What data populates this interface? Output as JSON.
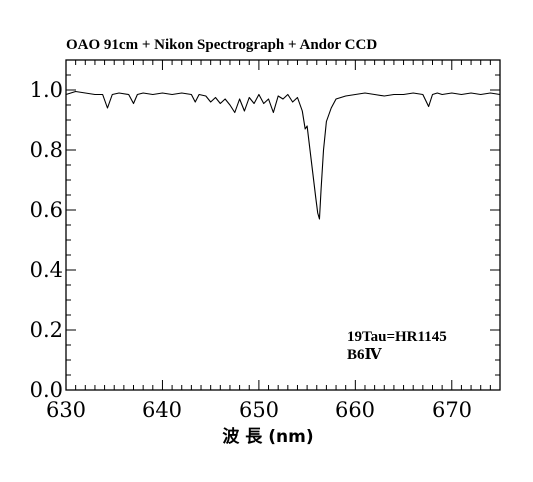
{
  "chart_data": {
    "type": "line",
    "title": "OAO 91cm + Nikon Spectrograph + Andor CCD",
    "xlabel": "波 長 (nm)",
    "ylabel": "",
    "xlim": [
      630,
      675
    ],
    "ylim": [
      0.0,
      1.1
    ],
    "xticks": [
      630,
      640,
      650,
      660,
      670
    ],
    "yticks": [
      0.0,
      0.2,
      0.4,
      0.6,
      0.8,
      1.0
    ],
    "xtick_labels": [
      "630",
      "640",
      "650",
      "660",
      "670"
    ],
    "ytick_labels": [
      "0.0",
      "0.2",
      "0.4",
      "0.6",
      "0.8",
      "1.0"
    ],
    "grid": false,
    "annotations": [
      "19Tau=HR1145",
      "B6Ⅳ"
    ],
    "series": [
      {
        "x": [
          630.0,
          631.0,
          632.0,
          633.0,
          633.8,
          634.3,
          634.8,
          635.5,
          636.5,
          637.0,
          637.4,
          638.0,
          639.0,
          640.0,
          641.0,
          642.0,
          643.0,
          643.4,
          643.8,
          644.5,
          645.0,
          645.5,
          646.0,
          646.5,
          647.0,
          647.5,
          648.0,
          648.5,
          649.0,
          649.5,
          650.0,
          650.5,
          651.0,
          651.5,
          652.0,
          652.5,
          653.0,
          653.5,
          654.0,
          654.5,
          654.8,
          655.0,
          655.3,
          655.6,
          655.9,
          656.1,
          656.28,
          656.45,
          656.7,
          657.0,
          657.5,
          658.0,
          659.0,
          660.0,
          661.0,
          662.0,
          663.0,
          664.0,
          665.0,
          666.0,
          667.0,
          667.6,
          668.0,
          668.5,
          669.0,
          670.0,
          671.0,
          672.0,
          673.0,
          674.0,
          675.0
        ],
        "y": [
          0.985,
          0.995,
          0.99,
          0.985,
          0.985,
          0.94,
          0.985,
          0.99,
          0.985,
          0.955,
          0.985,
          0.99,
          0.985,
          0.99,
          0.985,
          0.99,
          0.985,
          0.96,
          0.985,
          0.98,
          0.96,
          0.975,
          0.955,
          0.97,
          0.95,
          0.925,
          0.97,
          0.93,
          0.975,
          0.955,
          0.985,
          0.955,
          0.97,
          0.925,
          0.98,
          0.97,
          0.985,
          0.96,
          0.975,
          0.93,
          0.87,
          0.88,
          0.8,
          0.72,
          0.64,
          0.59,
          0.57,
          0.67,
          0.8,
          0.895,
          0.94,
          0.97,
          0.98,
          0.985,
          0.99,
          0.985,
          0.98,
          0.985,
          0.985,
          0.99,
          0.985,
          0.945,
          0.985,
          0.99,
          0.985,
          0.99,
          0.985,
          0.99,
          0.985,
          0.99,
          0.985
        ]
      }
    ]
  }
}
